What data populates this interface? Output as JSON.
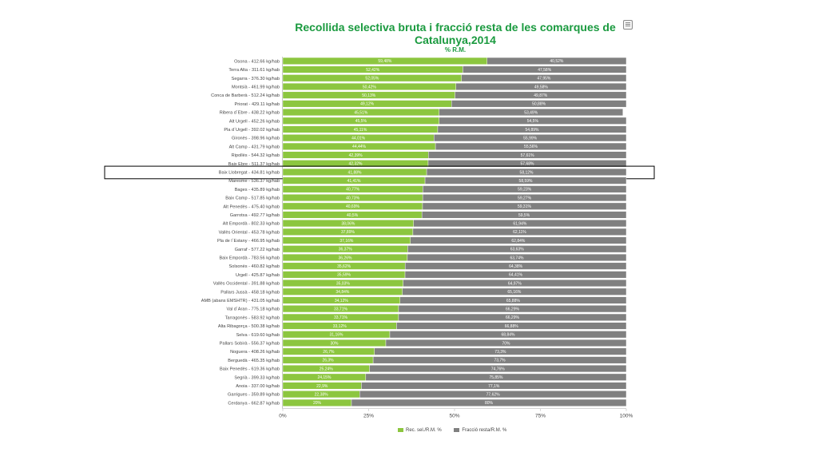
{
  "chart_data": {
    "type": "bar",
    "orientation": "horizontal",
    "stacked": true,
    "title": "Recollida selectiva bruta i fracció resta de les comarques de Catalunya,2014",
    "subtitle": "% R.M.",
    "categories": [
      "Osona - 412.66 kg/hab",
      "Terra Alta - 311.61 kg/hab",
      "Segarra - 376.30 kg/hab",
      "Montsià - 461.99 kg/hab",
      "Conca de Barberà - 512.24 kg/hab",
      "Priorat - 429.11 kg/hab",
      "Ribera d´Ebre - 438.22 kg/hab",
      "Alt Urgell - 452.26 kg/hab",
      "Pla d´Urgell - 392.02 kg/hab",
      "Gironès - 398.96 kg/hab",
      "Alt Camp - 431.79 kg/hab",
      "Ripollès - 544.32 kg/hab",
      "Baix Ebre - 511.37 kg/hab",
      "Baix Llobregat - 434.81 kg/hab",
      "Maresme - 536.37 kg/hab",
      "Bages - 435.89 kg/hab",
      "Baix Camp - 517.85 kg/hab",
      "Alt Penedès - 475.40 kg/hab",
      "Garrotxa - 492.77 kg/hab",
      "Alt Empordà - 802.33 kg/hab",
      "Vallès Oriental - 453.78 kg/hab",
      "Pla de l´Estany - 466.95 kg/hab",
      "Garraf - 577.22 kg/hab",
      "Baix Empordà - 783.56 kg/hab",
      "Solsonès - 460.82 kg/hab",
      "Urgell - 425.87 kg/hab",
      "Vallès Occidental - 391.88 kg/hab",
      "Pallars Jussà - 458.18 kg/hab",
      "AMB (abans EMSHTR) - 431.05 kg/hab",
      "Val d´Aran - 775.18 kg/hab",
      "Tarragonès - 583.92 kg/hab",
      "Alta Ribagorça - 500.38 kg/hab",
      "Selva - 619.60 kg/hab",
      "Pallars Sobirà - 556.37 kg/hab",
      "Noguera - 408.26 kg/hab",
      "Berguedà - 465.35 kg/hab",
      "Baix Penedès - 619.36 kg/hab",
      "Segrià - 399.33 kg/hab",
      "Anoia - 337.00 kg/hab",
      "Garrigues - 359.89 kg/hab",
      "Cerdanya - 662.87 kg/hab"
    ],
    "series": [
      {
        "name": "Rec. sel./R.M. %",
        "color": "#8cc63f",
        "values": [
          59.48,
          52.42,
          52.05,
          50.42,
          50.13,
          49.12,
          45.51,
          45.5,
          45.11,
          44.01,
          44.44,
          42.39,
          42.32,
          41.88,
          41.41,
          40.77,
          40.73,
          40.69,
          40.5,
          38.06,
          37.89,
          37.16,
          36.37,
          36.26,
          35.62,
          35.59,
          35.03,
          34.84,
          34.12,
          33.71,
          33.71,
          33.12,
          31.16,
          30,
          26.7,
          26.3,
          25.24,
          24.15,
          22.9,
          22.38,
          20
        ],
        "value_labels": [
          "59,48%",
          "52,42%",
          "52,05%",
          "50,42%",
          "50,13%",
          "49,12%",
          "45,51%",
          "45,5%",
          "45,11%",
          "44,01%",
          "44,44%",
          "42,39%",
          "42,32%",
          "41,88%",
          "41,41%",
          "40,77%",
          "40,73%",
          "40,69%",
          "40,5%",
          "38,06%",
          "37,89%",
          "37,16%",
          "36,37%",
          "36,26%",
          "35,62%",
          "35,59%",
          "35,03%",
          "34,84%",
          "34,12%",
          "33,71%",
          "33,71%",
          "33,12%",
          "31,16%",
          "30%",
          "26,7%",
          "26,3%",
          "25,24%",
          "24,15%",
          "22,9%",
          "22,38%",
          "20%"
        ]
      },
      {
        "name": "Fracció resta/R.M. %",
        "color": "#808080",
        "values": [
          40.52,
          47.58,
          47.95,
          49.58,
          49.87,
          50.88,
          53.49,
          54.5,
          54.89,
          55.99,
          55.56,
          57.61,
          57.68,
          58.12,
          58.59,
          59.23,
          59.27,
          59.31,
          59.5,
          61.94,
          62.11,
          62.84,
          63.63,
          63.74,
          64.38,
          64.41,
          64.97,
          65.16,
          65.88,
          66.29,
          66.29,
          66.88,
          68.84,
          70,
          73.3,
          73.7,
          74.76,
          75.85,
          77.1,
          77.62,
          80
        ],
        "value_labels": [
          "40,52%",
          "47,58%",
          "47,95%",
          "49,58%",
          "49,87%",
          "50,88%",
          "53,49%",
          "54,5%",
          "54,89%",
          "55,99%",
          "55,56%",
          "57,61%",
          "57,68%",
          "58,12%",
          "58,59%",
          "59,23%",
          "59,27%",
          "59,31%",
          "59,5%",
          "61,94%",
          "62,11%",
          "62,84%",
          "63,63%",
          "63,74%",
          "64,38%",
          "64,41%",
          "64,97%",
          "65,16%",
          "65,88%",
          "66,29%",
          "66,29%",
          "66,88%",
          "68,84%",
          "70%",
          "73,3%",
          "73,7%",
          "74,76%",
          "75,85%",
          "77,1%",
          "77,62%",
          "80%"
        ]
      }
    ],
    "xlim": [
      0,
      100
    ],
    "x_ticks": [
      "0%",
      "25%",
      "50%",
      "75%",
      "100%"
    ],
    "xlabel": "",
    "ylabel": "",
    "grid": false,
    "legend_position": "bottom-center",
    "highlighted_category": "Baix Llobregat - 434.81 kg/hab"
  },
  "toolbar": {
    "export_icon": "export-icon"
  }
}
